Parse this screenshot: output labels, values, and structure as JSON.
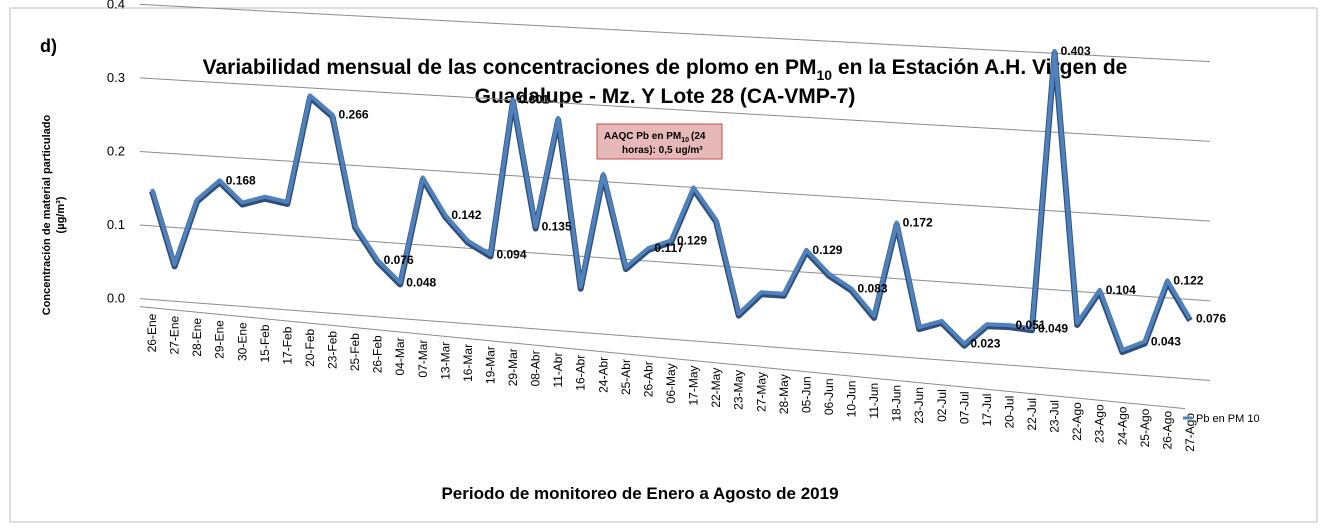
{
  "chart_data": {
    "type": "line",
    "panel_label": "d)",
    "title": [
      "Variabilidad mensual de las concentraciones de plomo en PM",
      "10",
      " en la Estación A.H. Virgen de",
      "Guadalupe - Mz. Y Lote 28 (CA-VMP-7)"
    ],
    "y_label": [
      "Concentración de material particulado",
      "(µg/m³)"
    ],
    "x_label": "Periodo de monitoreo de Enero a Agosto de 2019",
    "categories": [
      "26-Ene",
      "27-Ene",
      "28-Ene",
      "29-Ene",
      "30-Ene",
      "15-Feb",
      "17-Feb",
      "20-Feb",
      "23-Feb",
      "25-Feb",
      "26-Feb",
      "04-Mar",
      "07-Mar",
      "13-Mar",
      "16-Mar",
      "19-Mar",
      "29-Mar",
      "08-Abr",
      "11-Abr",
      "16-Abr",
      "24-Abr",
      "25-Abr",
      "26-Abr",
      "06-May",
      "17-May",
      "22-May",
      "23-May",
      "27-May",
      "28-May",
      "05-Jun",
      "06-Jun",
      "10-Jun",
      "11-Jun",
      "18-Jun",
      "23-Jun",
      "02-Jul",
      "07-Jul",
      "17-Jul",
      "20-Jul",
      "22-Jul",
      "23-Jul",
      "22-Ago",
      "23-Ago",
      "24-Ago",
      "25-Ago",
      "26-Ago",
      "27-Ago"
    ],
    "series": [
      {
        "name": "Pb en PM 10",
        "color": "#4f81bd",
        "values": [
          0.15,
          0.05,
          0.14,
          0.168,
          0.14,
          0.15,
          0.145,
          0.29,
          0.266,
          0.12,
          0.076,
          0.048,
          0.19,
          0.142,
          0.11,
          0.094,
          0.301,
          0.135,
          0.28,
          0.06,
          0.21,
          0.09,
          0.117,
          0.129,
          0.2,
          0.16,
          0.04,
          0.07,
          0.07,
          0.129,
          0.1,
          0.083,
          0.05,
          0.172,
          0.04,
          0.05,
          0.023,
          0.05,
          0.051,
          0.049,
          0.403,
          0.06,
          0.104,
          0.03,
          0.043,
          0.122,
          0.076
        ],
        "value_labels": [
          null,
          null,
          null,
          "0.168",
          null,
          null,
          null,
          null,
          "0.266",
          null,
          "0.076",
          "0.048",
          null,
          "0.142",
          null,
          "0.094",
          "0.301",
          "0.135",
          null,
          null,
          null,
          null,
          "0.117",
          "0.129",
          null,
          null,
          null,
          null,
          null,
          "0.129",
          null,
          "0.083",
          null,
          "0.172",
          null,
          null,
          "0.023",
          null,
          "0.051",
          "0.049",
          "0.403",
          null,
          "0.104",
          null,
          "0.043",
          "0.122",
          "0.076"
        ]
      }
    ],
    "reference_line": {
      "value": 0.5,
      "color": "#ff0000"
    },
    "annotation": [
      "AAQC Pb en PM",
      "10",
      "(24",
      "horas): 0,5 ug/m³"
    ],
    "ylim": [
      0,
      0.5
    ],
    "yticks": [
      {
        "value": 0,
        "label": "0.0"
      },
      0.1,
      0.2,
      0.3,
      0.4,
      0.5
    ],
    "grid": true,
    "legend": "right"
  }
}
